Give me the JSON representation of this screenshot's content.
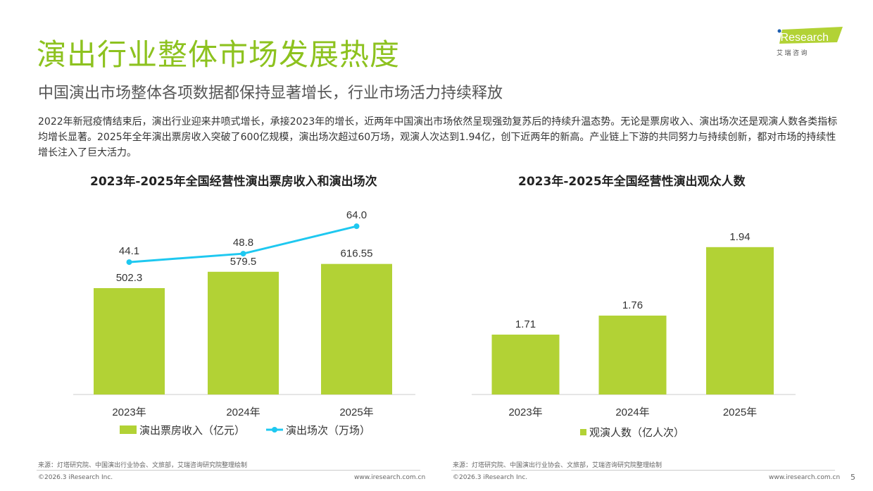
{
  "header": {
    "title": "演出行业整体市场发展热度",
    "subtitle": "中国演出市场整体各项数据都保持显著增长，行业市场活力持续释放",
    "description": "2022年新冠疫情结束后，演出行业迎来井喷式增长，承接2023年的增长，近两年中国演出市场依然呈现强劲复苏后的持续升温态势。无论是票房收入、演出场次还是观演人数各类指标均增长显著。2025年全年演出票房收入突破了600亿规模，演出场次超过60万场，观演人次达到1.94亿，创下近两年的新高。产业链上下游的共同努力与持续创新，都对市场的持续性增长注入了巨大活力。"
  },
  "logo": {
    "text": "iResearch",
    "subtext": "艾 瑞 咨 询"
  },
  "colors": {
    "title": "#8dc21f",
    "bar": "#b2d235",
    "line": "#1ec8f0"
  },
  "chart_data": [
    {
      "type": "bar+line",
      "title": "2023年-2025年全国经营性演出票房收入和演出场次",
      "categories": [
        "2023年",
        "2024年",
        "2025年"
      ],
      "series": [
        {
          "name": "演出票房收入（亿元）",
          "type": "bar",
          "values": [
            502.3,
            579.5,
            616.55
          ],
          "labels": [
            "502.3",
            "579.5",
            "616.55"
          ]
        },
        {
          "name": "演出场次（万场）",
          "type": "line",
          "values": [
            44.1,
            48.8,
            64.0
          ],
          "labels": [
            "44.1",
            "48.8",
            "64.0"
          ]
        }
      ],
      "legend": "bottom",
      "grid": false
    },
    {
      "type": "bar",
      "title": "2023年-2025年全国经营性演出观众人数",
      "categories": [
        "2023年",
        "2024年",
        "2025年"
      ],
      "series": [
        {
          "name": "观演人数（亿人次）",
          "values": [
            1.71,
            1.76,
            1.94
          ],
          "labels": [
            "1.71",
            "1.76",
            "1.94"
          ]
        }
      ],
      "legend": "bottom",
      "grid": false
    }
  ],
  "footer": {
    "source": "来源：灯塔研究院、中国演出行业协会、文旅部，艾瑞咨询研究院整理绘制",
    "copyright": "©2026.3 iResearch Inc.",
    "url": "www.iresearch.com.cn",
    "page": "5"
  }
}
